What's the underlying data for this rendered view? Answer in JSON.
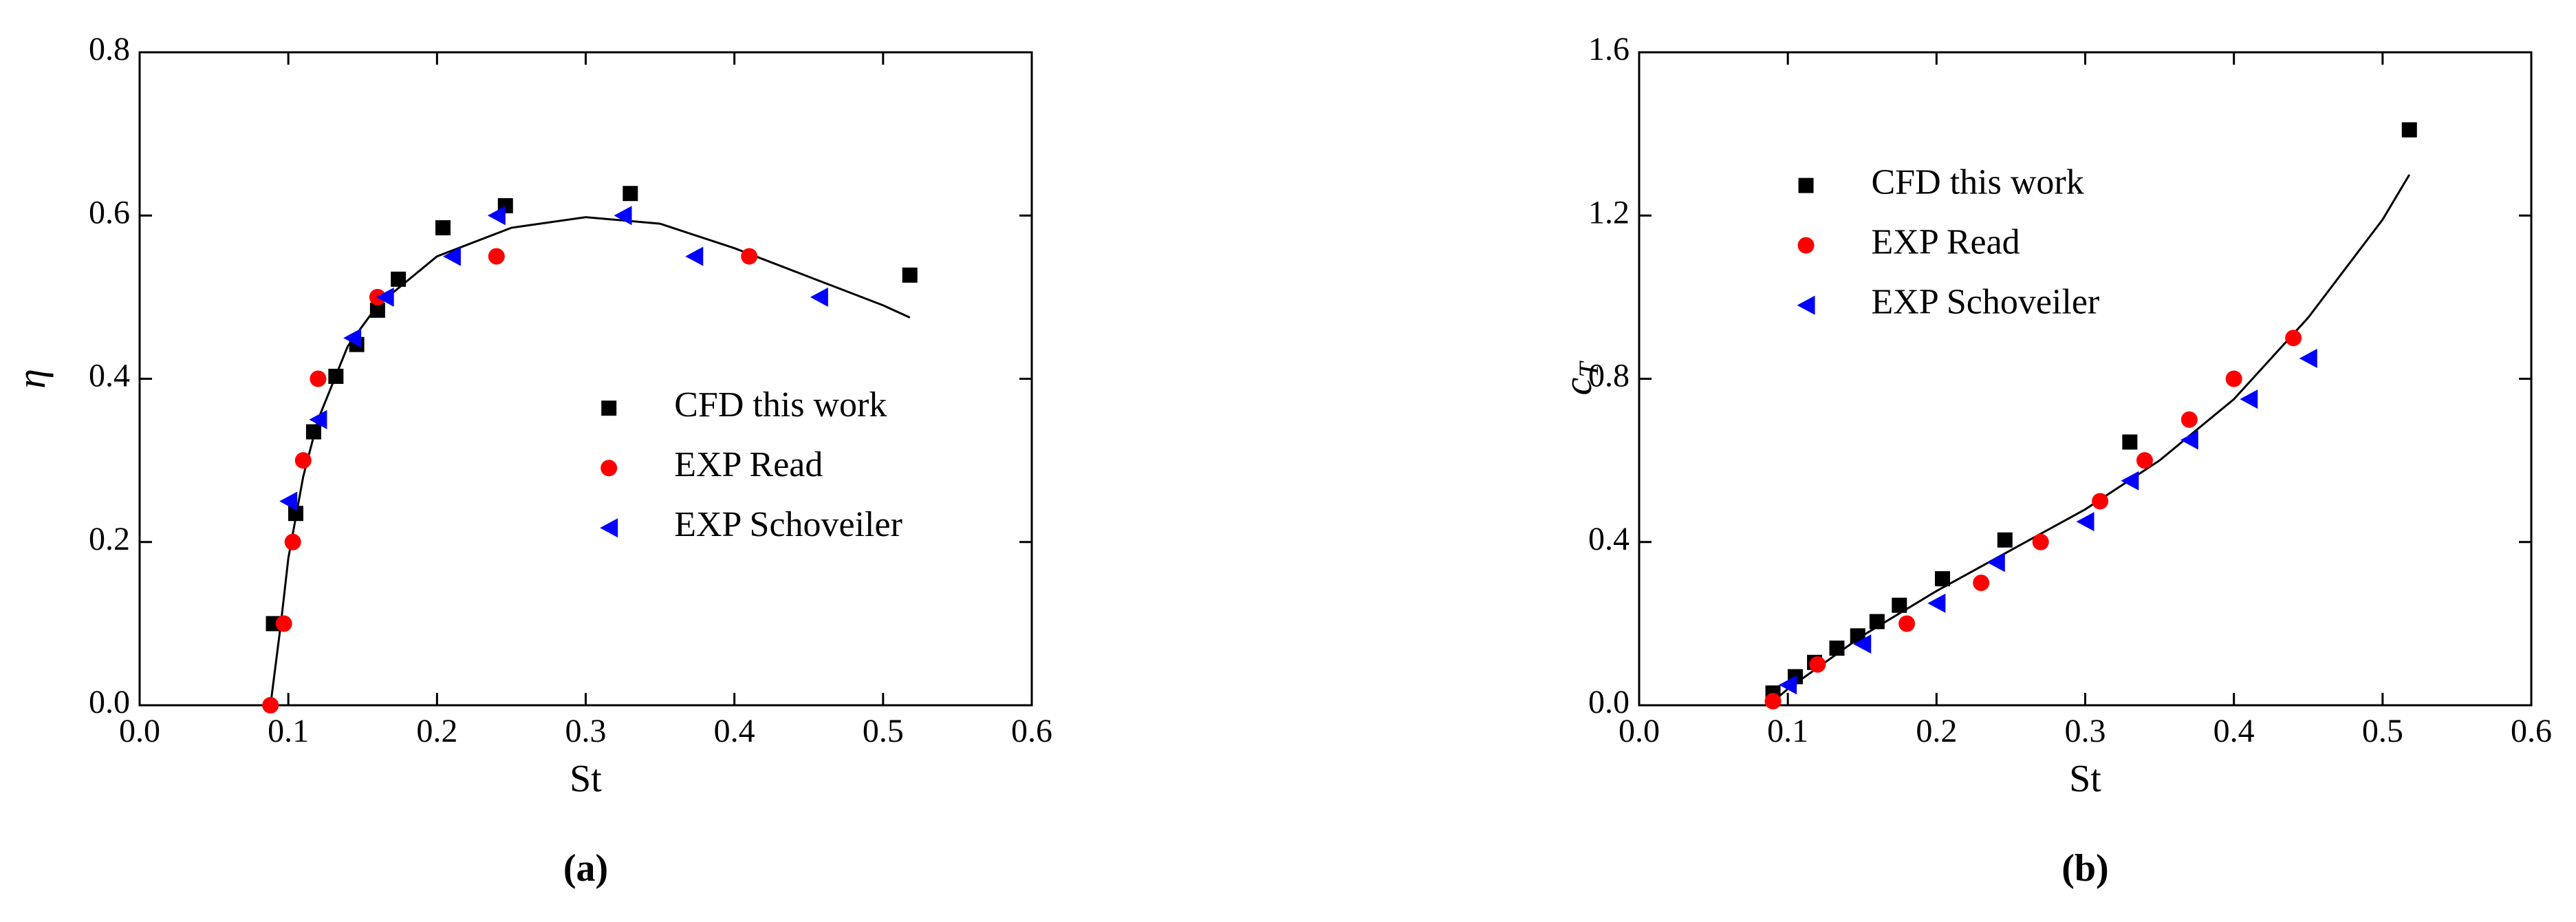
{
  "chart_data": [
    {
      "type": "scatter",
      "panel_label": "(a)",
      "x_label": "St",
      "y_label": "η",
      "xlim": [
        0,
        0.6
      ],
      "ylim": [
        0,
        0.8
      ],
      "xticks": [
        {
          "value": 0,
          "label": "0.0"
        },
        0.1,
        0.2,
        0.3,
        0.4,
        0.5,
        0.6
      ],
      "yticks": [
        {
          "value": 0,
          "label": "0.0"
        },
        0.2,
        0.4,
        0.6,
        0.8
      ],
      "legend": "center-right",
      "series": [
        {
          "name": "CFD this work",
          "color": "#000000",
          "marker": "square",
          "x": [
            0.09,
            0.105,
            0.117,
            0.132,
            0.146,
            0.16,
            0.174,
            0.204,
            0.246,
            0.33,
            0.518
          ],
          "values": [
            0.1,
            0.235,
            0.335,
            0.403,
            0.442,
            0.484,
            0.522,
            0.585,
            0.612,
            0.627,
            0.527
          ]
        },
        {
          "name": "EXP Read",
          "color": "#ff0000",
          "marker": "circle",
          "x": [
            0.088,
            0.097,
            0.103,
            0.11,
            0.12,
            0.16,
            0.24,
            0.41
          ],
          "values": [
            0,
            0.1,
            0.2,
            0.3,
            0.4,
            0.5,
            0.55,
            0.55
          ]
        },
        {
          "name": "EXP Schoveiler",
          "color": "#0000ff",
          "marker": "triangle-left",
          "x": [
            0.1,
            0.12,
            0.143,
            0.165,
            0.21,
            0.24,
            0.325,
            0.373,
            0.457
          ],
          "values": [
            0.25,
            0.35,
            0.45,
            0.5,
            0.55,
            0.6,
            0.6,
            0.55,
            0.5
          ]
        }
      ],
      "fit": {
        "color": "#000000",
        "x": [
          0.088,
          0.095,
          0.1,
          0.11,
          0.12,
          0.14,
          0.16,
          0.2,
          0.25,
          0.3,
          0.35,
          0.4,
          0.45,
          0.5,
          0.518
        ],
        "values": [
          0,
          0.1,
          0.18,
          0.28,
          0.35,
          0.44,
          0.49,
          0.55,
          0.585,
          0.598,
          0.59,
          0.56,
          0.525,
          0.49,
          0.475
        ]
      }
    },
    {
      "type": "scatter",
      "panel_label": "(b)",
      "x_label": "St",
      "y_label": "c",
      "y_label_sub": "T",
      "xlim": [
        0,
        0.6
      ],
      "ylim": [
        0,
        1.6
      ],
      "xticks": [
        {
          "value": 0,
          "label": "0.0"
        },
        0.1,
        0.2,
        0.3,
        0.4,
        0.5,
        0.6
      ],
      "yticks": [
        {
          "value": 0,
          "label": "0.0"
        },
        0.4,
        0.8,
        1.2,
        1.6
      ],
      "legend": "upper-left",
      "series": [
        {
          "name": "CFD this work",
          "color": "#000000",
          "marker": "square",
          "x": [
            0.09,
            0.105,
            0.118,
            0.133,
            0.147,
            0.16,
            0.175,
            0.204,
            0.246,
            0.33,
            0.518
          ],
          "values": [
            0.03,
            0.07,
            0.105,
            0.14,
            0.17,
            0.205,
            0.245,
            0.31,
            0.405,
            0.645,
            1.41
          ]
        },
        {
          "name": "EXP Read",
          "color": "#ff0000",
          "marker": "circle",
          "x": [
            0.09,
            0.12,
            0.18,
            0.23,
            0.27,
            0.31,
            0.34,
            0.37,
            0.4,
            0.44
          ],
          "values": [
            0.01,
            0.1,
            0.2,
            0.3,
            0.4,
            0.5,
            0.6,
            0.7,
            0.8,
            0.9
          ]
        },
        {
          "name": "EXP Schoveiler",
          "color": "#0000ff",
          "marker": "triangle-left",
          "x": [
            0.1,
            0.15,
            0.2,
            0.24,
            0.3,
            0.33,
            0.37,
            0.41,
            0.45
          ],
          "values": [
            0.05,
            0.15,
            0.25,
            0.35,
            0.45,
            0.55,
            0.65,
            0.75,
            0.85
          ]
        }
      ],
      "fit": {
        "color": "#000000",
        "x": [
          0.087,
          0.1,
          0.15,
          0.2,
          0.25,
          0.3,
          0.35,
          0.4,
          0.45,
          0.5,
          0.518
        ],
        "values": [
          0,
          0.04,
          0.17,
          0.28,
          0.38,
          0.48,
          0.6,
          0.75,
          0.95,
          1.19,
          1.3
        ]
      }
    }
  ]
}
